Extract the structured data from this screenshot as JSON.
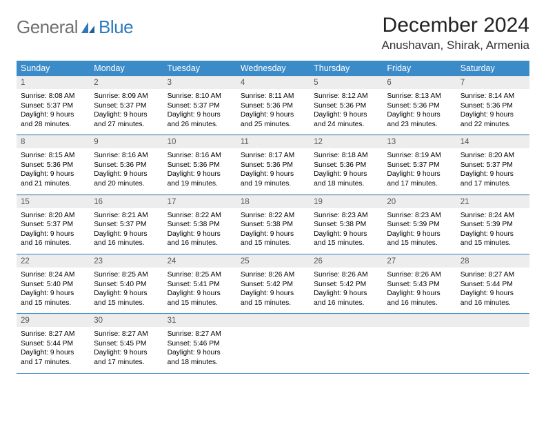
{
  "brand": {
    "general": "General",
    "blue": "Blue"
  },
  "title": "December 2024",
  "location": "Anushavan, Shirak, Armenia",
  "weekdays": [
    "Sunday",
    "Monday",
    "Tuesday",
    "Wednesday",
    "Thursday",
    "Friday",
    "Saturday"
  ],
  "style": {
    "header_bg": "#3b8bc9",
    "header_fg": "#ffffff",
    "daynum_bg": "#ededed",
    "row_divider": "#3b8bc9",
    "body_font_size": 10.3,
    "title_font_size": 30,
    "location_font_size": 17
  },
  "days": [
    {
      "n": 1,
      "sunrise": "8:08 AM",
      "sunset": "5:37 PM",
      "dhr": 9,
      "dmin": 28
    },
    {
      "n": 2,
      "sunrise": "8:09 AM",
      "sunset": "5:37 PM",
      "dhr": 9,
      "dmin": 27
    },
    {
      "n": 3,
      "sunrise": "8:10 AM",
      "sunset": "5:37 PM",
      "dhr": 9,
      "dmin": 26
    },
    {
      "n": 4,
      "sunrise": "8:11 AM",
      "sunset": "5:36 PM",
      "dhr": 9,
      "dmin": 25
    },
    {
      "n": 5,
      "sunrise": "8:12 AM",
      "sunset": "5:36 PM",
      "dhr": 9,
      "dmin": 24
    },
    {
      "n": 6,
      "sunrise": "8:13 AM",
      "sunset": "5:36 PM",
      "dhr": 9,
      "dmin": 23
    },
    {
      "n": 7,
      "sunrise": "8:14 AM",
      "sunset": "5:36 PM",
      "dhr": 9,
      "dmin": 22
    },
    {
      "n": 8,
      "sunrise": "8:15 AM",
      "sunset": "5:36 PM",
      "dhr": 9,
      "dmin": 21
    },
    {
      "n": 9,
      "sunrise": "8:16 AM",
      "sunset": "5:36 PM",
      "dhr": 9,
      "dmin": 20
    },
    {
      "n": 10,
      "sunrise": "8:16 AM",
      "sunset": "5:36 PM",
      "dhr": 9,
      "dmin": 19
    },
    {
      "n": 11,
      "sunrise": "8:17 AM",
      "sunset": "5:36 PM",
      "dhr": 9,
      "dmin": 19
    },
    {
      "n": 12,
      "sunrise": "8:18 AM",
      "sunset": "5:36 PM",
      "dhr": 9,
      "dmin": 18
    },
    {
      "n": 13,
      "sunrise": "8:19 AM",
      "sunset": "5:37 PM",
      "dhr": 9,
      "dmin": 17
    },
    {
      "n": 14,
      "sunrise": "8:20 AM",
      "sunset": "5:37 PM",
      "dhr": 9,
      "dmin": 17
    },
    {
      "n": 15,
      "sunrise": "8:20 AM",
      "sunset": "5:37 PM",
      "dhr": 9,
      "dmin": 16
    },
    {
      "n": 16,
      "sunrise": "8:21 AM",
      "sunset": "5:37 PM",
      "dhr": 9,
      "dmin": 16
    },
    {
      "n": 17,
      "sunrise": "8:22 AM",
      "sunset": "5:38 PM",
      "dhr": 9,
      "dmin": 16
    },
    {
      "n": 18,
      "sunrise": "8:22 AM",
      "sunset": "5:38 PM",
      "dhr": 9,
      "dmin": 15
    },
    {
      "n": 19,
      "sunrise": "8:23 AM",
      "sunset": "5:38 PM",
      "dhr": 9,
      "dmin": 15
    },
    {
      "n": 20,
      "sunrise": "8:23 AM",
      "sunset": "5:39 PM",
      "dhr": 9,
      "dmin": 15
    },
    {
      "n": 21,
      "sunrise": "8:24 AM",
      "sunset": "5:39 PM",
      "dhr": 9,
      "dmin": 15
    },
    {
      "n": 22,
      "sunrise": "8:24 AM",
      "sunset": "5:40 PM",
      "dhr": 9,
      "dmin": 15
    },
    {
      "n": 23,
      "sunrise": "8:25 AM",
      "sunset": "5:40 PM",
      "dhr": 9,
      "dmin": 15
    },
    {
      "n": 24,
      "sunrise": "8:25 AM",
      "sunset": "5:41 PM",
      "dhr": 9,
      "dmin": 15
    },
    {
      "n": 25,
      "sunrise": "8:26 AM",
      "sunset": "5:42 PM",
      "dhr": 9,
      "dmin": 15
    },
    {
      "n": 26,
      "sunrise": "8:26 AM",
      "sunset": "5:42 PM",
      "dhr": 9,
      "dmin": 16
    },
    {
      "n": 27,
      "sunrise": "8:26 AM",
      "sunset": "5:43 PM",
      "dhr": 9,
      "dmin": 16
    },
    {
      "n": 28,
      "sunrise": "8:27 AM",
      "sunset": "5:44 PM",
      "dhr": 9,
      "dmin": 16
    },
    {
      "n": 29,
      "sunrise": "8:27 AM",
      "sunset": "5:44 PM",
      "dhr": 9,
      "dmin": 17
    },
    {
      "n": 30,
      "sunrise": "8:27 AM",
      "sunset": "5:45 PM",
      "dhr": 9,
      "dmin": 17
    },
    {
      "n": 31,
      "sunrise": "8:27 AM",
      "sunset": "5:46 PM",
      "dhr": 9,
      "dmin": 18
    }
  ]
}
